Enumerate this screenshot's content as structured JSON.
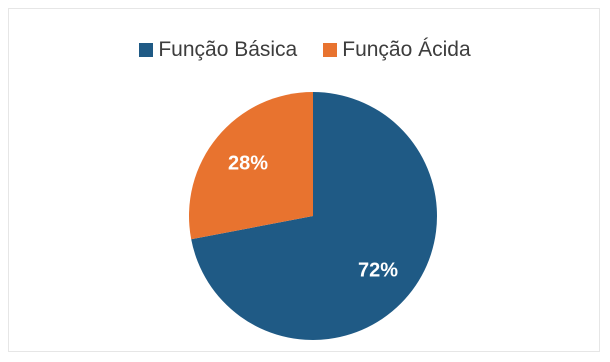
{
  "chart_data": {
    "type": "pie",
    "categories": [
      "Função Básica",
      "Função Ácida"
    ],
    "values": [
      72,
      28
    ],
    "labels": [
      "72%",
      "28%"
    ],
    "colors": [
      "#1f5a85",
      "#e8732f"
    ],
    "legend_position": "top"
  }
}
